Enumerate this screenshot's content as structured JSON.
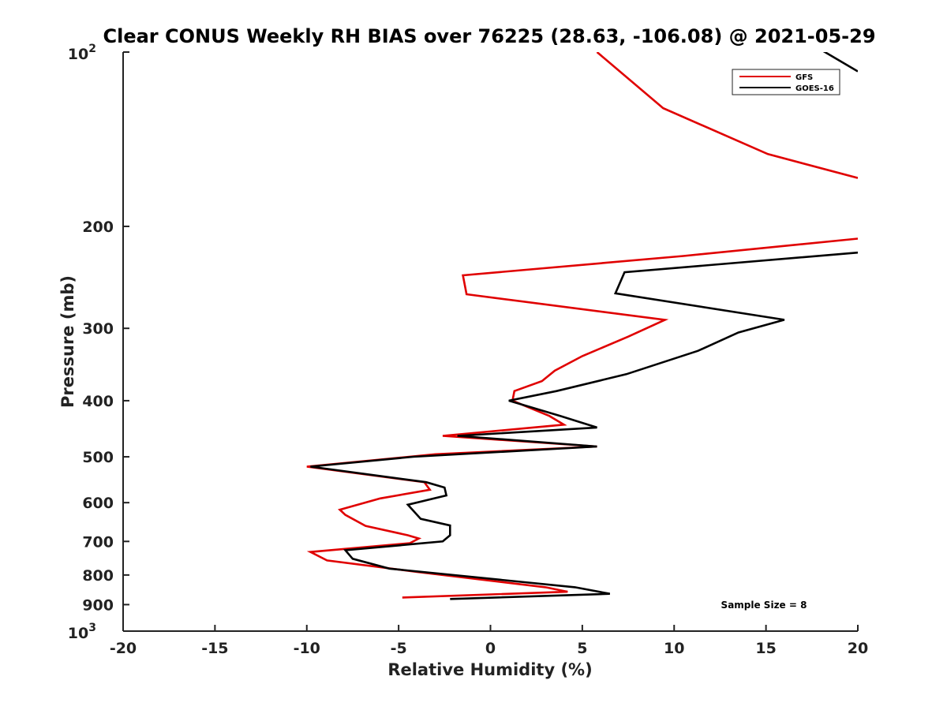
{
  "chart_data": {
    "type": "line",
    "title": "Clear CONUS Weekly RH BIAS over 76225 (28.63, -106.08) @ 2021-05-29",
    "xlabel": "Relative Humidity (%)",
    "ylabel": "Pressure (mb)",
    "xlim": [
      -20,
      20
    ],
    "ylim": [
      100,
      1000
    ],
    "y_scale": "log",
    "y_reversed": true,
    "x_ticks": [
      {
        "value": -20,
        "label": "-20"
      },
      {
        "value": -15,
        "label": "-15"
      },
      {
        "value": -10,
        "label": "-10"
      },
      {
        "value": -5,
        "label": "-5"
      },
      {
        "value": 0,
        "label": "0"
      },
      {
        "value": 5,
        "label": "5"
      },
      {
        "value": 10,
        "label": "10"
      },
      {
        "value": 15,
        "label": "15"
      },
      {
        "value": 20,
        "label": "20"
      }
    ],
    "y_ticks": [
      {
        "value": 100,
        "base": "10",
        "exp": "2"
      },
      {
        "value": 200,
        "label": "200"
      },
      {
        "value": 300,
        "label": "300"
      },
      {
        "value": 400,
        "label": "400"
      },
      {
        "value": 500,
        "label": "500"
      },
      {
        "value": 600,
        "label": "600"
      },
      {
        "value": 700,
        "label": "700"
      },
      {
        "value": 800,
        "label": "800"
      },
      {
        "value": 900,
        "label": "900"
      },
      {
        "value": 1000,
        "base": "10",
        "exp": "3"
      }
    ],
    "grid": false,
    "legend_position": "top-right",
    "annotation": "Sample Size = 8",
    "series": [
      {
        "name": "GFS",
        "color": "#e00000",
        "points": [
          [
            5.8,
            100
          ],
          [
            9.4,
            125
          ],
          [
            15.1,
            150
          ],
          [
            20.0,
            165
          ],
          [
            null,
            null
          ],
          [
            20.0,
            210
          ],
          [
            10.5,
            225
          ],
          [
            -1.5,
            243
          ],
          [
            -1.3,
            262
          ],
          [
            9.5,
            290
          ],
          [
            7.5,
            310
          ],
          [
            5.0,
            335
          ],
          [
            3.5,
            355
          ],
          [
            2.8,
            370
          ],
          [
            1.3,
            385
          ],
          [
            1.2,
            400
          ],
          [
            3.2,
            425
          ],
          [
            4.0,
            440
          ],
          [
            -2.6,
            460
          ],
          [
            5.8,
            480
          ],
          [
            -3.0,
            495
          ],
          [
            -10.0,
            520
          ],
          [
            -3.6,
            553
          ],
          [
            -3.3,
            570
          ],
          [
            -6.0,
            590
          ],
          [
            -8.2,
            617
          ],
          [
            -7.9,
            630
          ],
          [
            -6.8,
            658
          ],
          [
            -4.5,
            683
          ],
          [
            -3.9,
            692
          ],
          [
            -4.4,
            705
          ],
          [
            -9.8,
            730
          ],
          [
            -8.9,
            755
          ],
          [
            -4.0,
            790
          ],
          [
            3.0,
            840
          ],
          [
            4.2,
            855
          ],
          [
            -4.8,
            875
          ]
        ]
      },
      {
        "name": "GOES-16",
        "color": "#000000",
        "points": [
          [
            17.5,
            97
          ],
          [
            20.0,
            108
          ],
          [
            null,
            null
          ],
          [
            20.0,
            222
          ],
          [
            7.3,
            240
          ],
          [
            6.8,
            261
          ],
          [
            16.0,
            290
          ],
          [
            13.5,
            305
          ],
          [
            11.3,
            328
          ],
          [
            7.4,
            360
          ],
          [
            3.6,
            385
          ],
          [
            1.0,
            400
          ],
          [
            3.8,
            425
          ],
          [
            5.8,
            445
          ],
          [
            -1.8,
            460
          ],
          [
            5.8,
            480
          ],
          [
            -4.2,
            500
          ],
          [
            -9.8,
            520
          ],
          [
            -3.5,
            553
          ],
          [
            -2.5,
            565
          ],
          [
            -2.4,
            583
          ],
          [
            -4.5,
            605
          ],
          [
            -3.8,
            640
          ],
          [
            -2.2,
            657
          ],
          [
            -2.2,
            683
          ],
          [
            -2.6,
            700
          ],
          [
            -7.9,
            725
          ],
          [
            -7.5,
            750
          ],
          [
            -5.5,
            780
          ],
          [
            4.6,
            840
          ],
          [
            6.5,
            862
          ],
          [
            -2.2,
            880
          ]
        ]
      }
    ]
  }
}
